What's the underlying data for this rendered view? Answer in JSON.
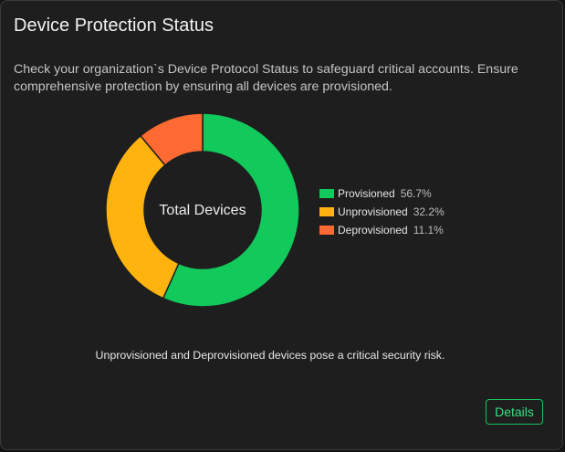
{
  "card": {
    "title": "Device Protection Status",
    "description": "Check your organization`s Device Protocol Status to safeguard critical accounts. Ensure comprehensive protection by ensuring all devices are provisioned.",
    "footnote": "Unprovisioned and Deprovisioned devices pose a critical security risk.",
    "details_label": "Details"
  },
  "chart_data": {
    "type": "pie",
    "center_label": "Total Devices",
    "legend_position": "right",
    "slices": [
      {
        "label": "Provisioned",
        "value": 56.7,
        "display": "56.7%",
        "color": "#12c95b"
      },
      {
        "label": "Unprovisioned",
        "value": 32.2,
        "display": "32.2%",
        "color": "#ffb30f"
      },
      {
        "label": "Deprovisioned",
        "value": 11.1,
        "display": "11.1%",
        "color": "#ff6a33"
      }
    ]
  },
  "colors": {
    "background": "#1e1e1e",
    "accent": "#3ddc84"
  }
}
